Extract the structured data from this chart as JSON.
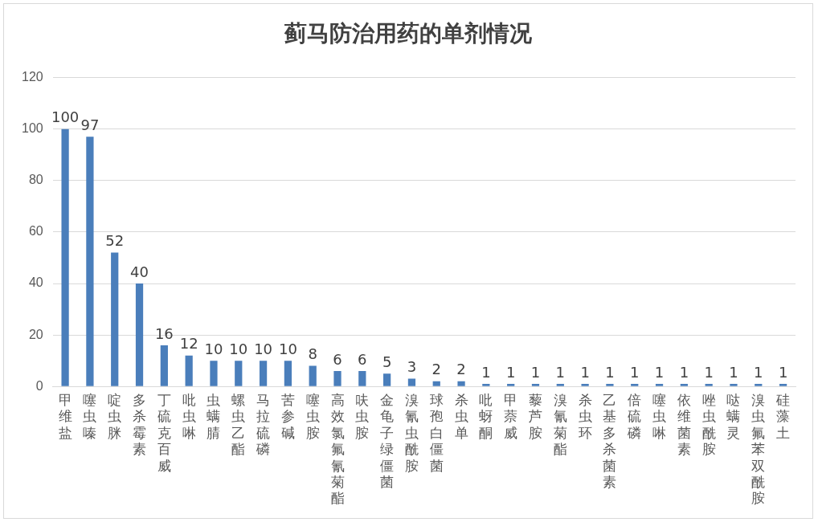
{
  "chart_data": {
    "type": "bar",
    "title": "蓟马防治用药的单剂情况",
    "categories": [
      "甲维盐",
      "噻虫嗪",
      "啶虫脒",
      "多杀霉素",
      "丁硫克百威",
      "吡虫啉",
      "虫螨腈",
      "螺虫乙酯",
      "马拉硫磷",
      "苦参碱",
      "噻虫胺",
      "高效氯氟氰菊酯",
      "呋虫胺",
      "金龟子绿僵菌",
      "溴氰虫酰胺",
      "球孢白僵菌",
      "杀虫单",
      "吡蚜酮",
      "甲萘威",
      "藜芦胺",
      "溴氰菊酯",
      "杀虫环",
      "乙基多杀菌素",
      "倍硫磷",
      "噻虫啉",
      "依维菌素",
      "唑虫酰胺",
      "哒螨灵",
      "溴虫氟苯双酰胺",
      "硅藻土"
    ],
    "values": [
      100,
      97,
      52,
      40,
      16,
      12,
      10,
      10,
      10,
      10,
      8,
      6,
      6,
      5,
      3,
      2,
      2,
      1,
      1,
      1,
      1,
      1,
      1,
      1,
      1,
      1,
      1,
      1,
      1,
      1
    ],
    "color": "#4a7ebb",
    "ylim": [
      0,
      120
    ],
    "yticks": [
      0,
      20,
      40,
      60,
      80,
      100,
      120
    ],
    "grid": "y",
    "data_labels": true
  }
}
